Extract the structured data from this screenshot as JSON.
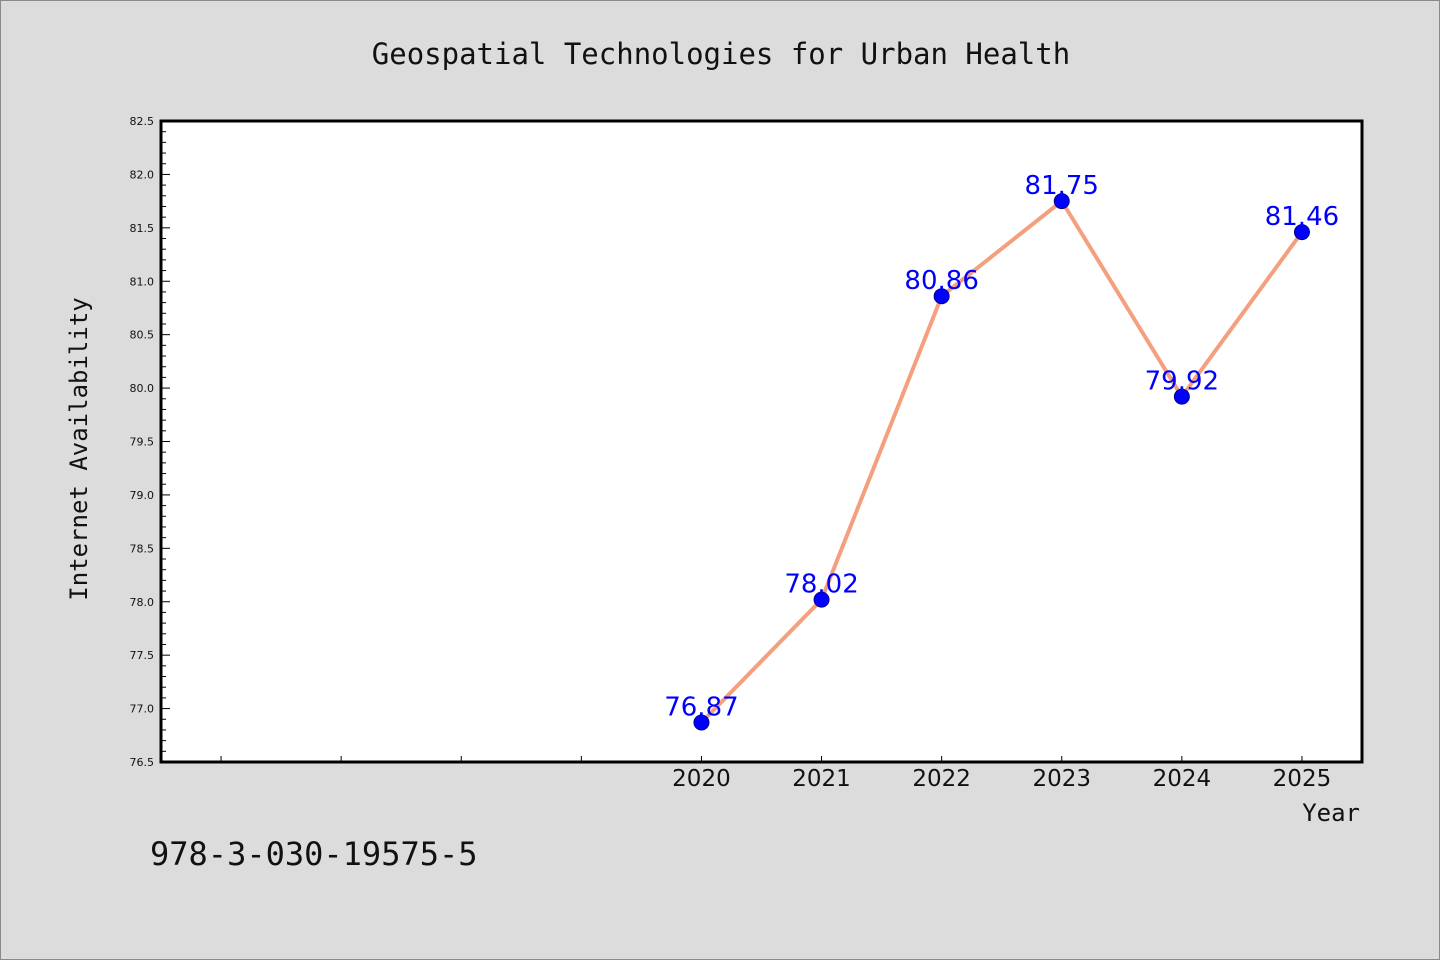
{
  "chart_data": {
    "type": "line",
    "title": "Geospatial Technologies for Urban Health",
    "xlabel": "Year",
    "ylabel": "Internet Availability",
    "x": [
      2020,
      2021,
      2022,
      2023,
      2024,
      2025
    ],
    "series": [
      {
        "values": [
          76.87,
          78.02,
          80.86,
          81.75,
          79.92,
          81.46
        ]
      }
    ],
    "data_labels": [
      "76.87",
      "78.02",
      "80.86",
      "81.75",
      "79.92",
      "81.46"
    ],
    "xlim": [
      2015.5,
      2025.5
    ],
    "ylim": [
      76.5,
      82.5
    ],
    "y_ticks": [
      "76.5",
      "77.0",
      "77.5",
      "78.0",
      "78.5",
      "79.0",
      "79.5",
      "80.0",
      "80.5",
      "81.0",
      "81.5",
      "82.0",
      "82.5"
    ],
    "x_ticks": [
      "2020",
      "2021",
      "2022",
      "2023",
      "2024",
      "2025"
    ],
    "line_color": "#f4a07e",
    "marker_color": "#0000ff",
    "label_color": "#0000ff",
    "grid": false
  },
  "footer_code": "978-3-030-19575-5"
}
